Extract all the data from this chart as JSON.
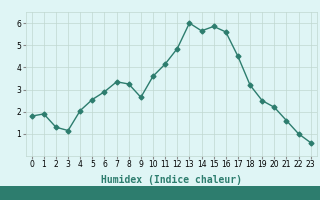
{
  "x": [
    0,
    1,
    2,
    3,
    4,
    5,
    6,
    7,
    8,
    9,
    10,
    11,
    12,
    13,
    14,
    15,
    16,
    17,
    18,
    19,
    20,
    21,
    22,
    23
  ],
  "y": [
    1.8,
    1.9,
    1.3,
    1.15,
    2.05,
    2.55,
    2.9,
    3.35,
    3.25,
    2.65,
    3.6,
    4.15,
    4.85,
    6.0,
    5.65,
    5.85,
    5.6,
    4.5,
    3.2,
    2.5,
    2.2,
    1.6,
    1.0,
    0.6
  ],
  "line_color": "#2d7d6e",
  "marker": "D",
  "marker_size": 2.5,
  "line_width": 1.0,
  "xlabel": "Humidex (Indice chaleur)",
  "xlabel_fontsize": 7,
  "bg_color": "#dff5f5",
  "grid_color": "#c0d8d0",
  "axis_bg": "#dff5f5",
  "ylim": [
    0,
    6.5
  ],
  "xlim": [
    -0.5,
    23.5
  ],
  "yticks": [
    1,
    2,
    3,
    4,
    5,
    6
  ],
  "xticks": [
    0,
    1,
    2,
    3,
    4,
    5,
    6,
    7,
    8,
    9,
    10,
    11,
    12,
    13,
    14,
    15,
    16,
    17,
    18,
    19,
    20,
    21,
    22,
    23
  ],
  "tick_fontsize": 5.5,
  "bottom_bar_color": "#2d7d6e"
}
